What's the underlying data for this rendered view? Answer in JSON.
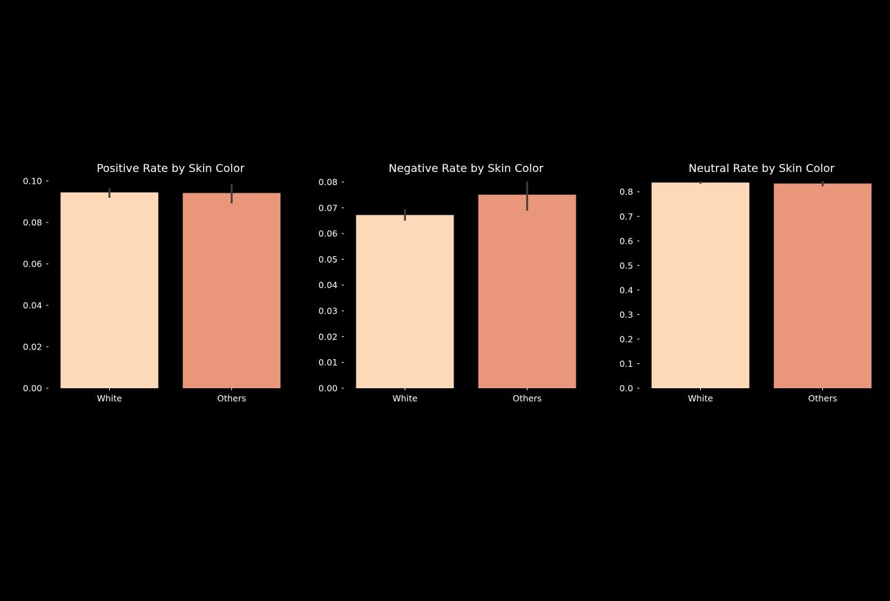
{
  "chart_data": [
    {
      "type": "bar",
      "title": "Positive Rate by Skin Color",
      "categories": [
        "White",
        "Others"
      ],
      "values": [
        0.0945,
        0.0942
      ],
      "error_bars": [
        [
          0.0919,
          0.0965
        ],
        [
          0.0892,
          0.0985
        ]
      ],
      "colors": [
        "#fed9b7",
        "#e9967a"
      ],
      "ylim": [
        0,
        0.1
      ],
      "yticks": [
        "0.00",
        "0.02",
        "0.04",
        "0.06",
        "0.08",
        "0.10"
      ],
      "grid": false
    },
    {
      "type": "bar",
      "title": "Negative Rate by Skin Color",
      "categories": [
        "White",
        "Others"
      ],
      "values": [
        0.0672,
        0.0751
      ],
      "error_bars": [
        [
          0.065,
          0.0694
        ],
        [
          0.0689,
          0.0802
        ]
      ],
      "colors": [
        "#fed9b7",
        "#e9967a"
      ],
      "ylim": [
        0,
        0.0804
      ],
      "yticks": [
        "0.00",
        "0.01",
        "0.02",
        "0.03",
        "0.04",
        "0.05",
        "0.06",
        "0.07",
        "0.08"
      ],
      "grid": false
    },
    {
      "type": "bar",
      "title": "Neutral Rate by Skin Color",
      "categories": [
        "White",
        "Others"
      ],
      "values": [
        0.838,
        0.834
      ],
      "error_bars": [
        [
          0.8333,
          0.8427
        ],
        [
          0.8227,
          0.8434
        ]
      ],
      "colors": [
        "#fed9b7",
        "#e9967a"
      ],
      "ylim": [
        0,
        0.8443
      ],
      "yticks": [
        "0.0",
        "0.1",
        "0.2",
        "0.3",
        "0.4",
        "0.5",
        "0.6",
        "0.7",
        "0.8"
      ],
      "grid": false
    }
  ]
}
